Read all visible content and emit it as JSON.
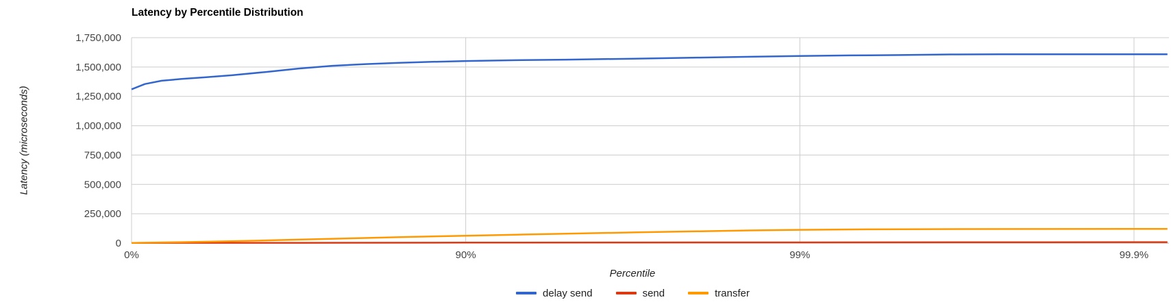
{
  "chart_data": {
    "type": "line",
    "title": "Latency by Percentile Distribution",
    "xlabel": "Percentile",
    "ylabel": "Latency (microseconds)",
    "legend_position": "bottom",
    "grid": true,
    "x_scale": "log-percentile, u = log10(1/(1-p)), equal spacing per decade",
    "x_ticks": [
      {
        "label": "0%",
        "u": 0
      },
      {
        "label": "90%",
        "u": 1
      },
      {
        "label": "99%",
        "u": 2
      },
      {
        "label": "99.9%",
        "u": 3
      }
    ],
    "x_range_u": [
      0,
      3.1
    ],
    "ylim": [
      0,
      1750000
    ],
    "y_ticks": [
      {
        "value": 0,
        "label": "0"
      },
      {
        "value": 250000,
        "label": "250,000"
      },
      {
        "value": 500000,
        "label": "500,000"
      },
      {
        "value": 750000,
        "label": "750,000"
      },
      {
        "value": 1000000,
        "label": "1,000,000"
      },
      {
        "value": 1250000,
        "label": "1,250,000"
      },
      {
        "value": 1500000,
        "label": "1,500,000"
      },
      {
        "value": 1750000,
        "label": "1,750,000"
      }
    ],
    "colors": {
      "gridline": "#cccccc",
      "baseline": "#b0b0b0",
      "tick_label": "#444444",
      "axis_title": "#222222",
      "title": "#000000"
    },
    "series": [
      {
        "name": "delay send",
        "color": "#3366CC",
        "points": [
          [
            0.0,
            1310000
          ],
          [
            0.04,
            1355000
          ],
          [
            0.09,
            1383000
          ],
          [
            0.15,
            1398000
          ],
          [
            0.22,
            1412000
          ],
          [
            0.3,
            1430000
          ],
          [
            0.4,
            1457000
          ],
          [
            0.5,
            1487000
          ],
          [
            0.6,
            1510000
          ],
          [
            0.7,
            1525000
          ],
          [
            0.8,
            1536000
          ],
          [
            0.9,
            1544000
          ],
          [
            1.0,
            1551000
          ],
          [
            1.15,
            1558000
          ],
          [
            1.3,
            1563000
          ],
          [
            1.5,
            1571000
          ],
          [
            1.7,
            1580000
          ],
          [
            1.85,
            1587000
          ],
          [
            2.0,
            1594000
          ],
          [
            2.15,
            1599000
          ],
          [
            2.3,
            1602000
          ],
          [
            2.45,
            1607000
          ],
          [
            2.6,
            1608000
          ],
          [
            2.8,
            1608000
          ],
          [
            3.0,
            1609000
          ],
          [
            3.1,
            1609000
          ]
        ]
      },
      {
        "name": "send",
        "color": "#DC3912",
        "points": [
          [
            0.0,
            1500
          ],
          [
            0.5,
            2500
          ],
          [
            1.0,
            4000
          ],
          [
            1.5,
            5000
          ],
          [
            2.0,
            6000
          ],
          [
            2.5,
            7000
          ],
          [
            3.0,
            8000
          ],
          [
            3.1,
            8000
          ]
        ]
      },
      {
        "name": "transfer",
        "color": "#FF9900",
        "points": [
          [
            0.0,
            1000
          ],
          [
            0.15,
            8000
          ],
          [
            0.3,
            16000
          ],
          [
            0.5,
            30000
          ],
          [
            0.7,
            44000
          ],
          [
            0.85,
            54000
          ],
          [
            1.0,
            63000
          ],
          [
            1.15,
            72000
          ],
          [
            1.3,
            80000
          ],
          [
            1.5,
            91000
          ],
          [
            1.7,
            101000
          ],
          [
            1.85,
            108000
          ],
          [
            2.0,
            113000
          ],
          [
            2.2,
            117000
          ],
          [
            2.4,
            119000
          ],
          [
            2.7,
            120000
          ],
          [
            3.0,
            121000
          ],
          [
            3.1,
            121000
          ]
        ]
      }
    ]
  }
}
